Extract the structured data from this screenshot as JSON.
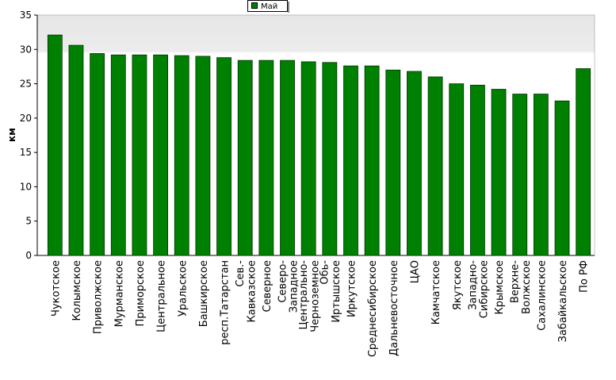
{
  "chart_data": {
    "type": "bar",
    "legend": "Май",
    "ylabel": "км",
    "color": "#008000",
    "categories": [
      "Чукотское",
      "Колымское",
      "Приволжское",
      "Мурманское",
      "Приморское",
      "Центральное",
      "Уральское",
      "Башкирское",
      "респ.Татарстан",
      "Сев.-\nКавказское",
      "Северное",
      "Северо-\nЗападное",
      "Центрально-\nЧерноземное",
      "Обь-\nИртышское",
      "Иркутское",
      "Среднесибирское",
      "Дальневосточное",
      "ЦАО",
      "Камчатское",
      "Якутское",
      "Западно-\nСибирское",
      "Крымское",
      "Верхне-\nВолжское",
      "Сахалинское",
      "Забайкальское",
      "По РФ"
    ],
    "values": [
      32.1,
      30.6,
      29.4,
      29.2,
      29.2,
      29.2,
      29.1,
      29.0,
      28.8,
      28.4,
      28.4,
      28.4,
      28.2,
      28.1,
      27.6,
      27.6,
      27.0,
      26.8,
      26.0,
      25.0,
      24.8,
      24.2,
      23.5,
      23.5,
      22.5,
      27.2
    ],
    "ylim": [
      0,
      35
    ],
    "yticks": [
      0,
      5,
      10,
      15,
      20,
      25,
      30,
      35
    ],
    "grid": false
  }
}
